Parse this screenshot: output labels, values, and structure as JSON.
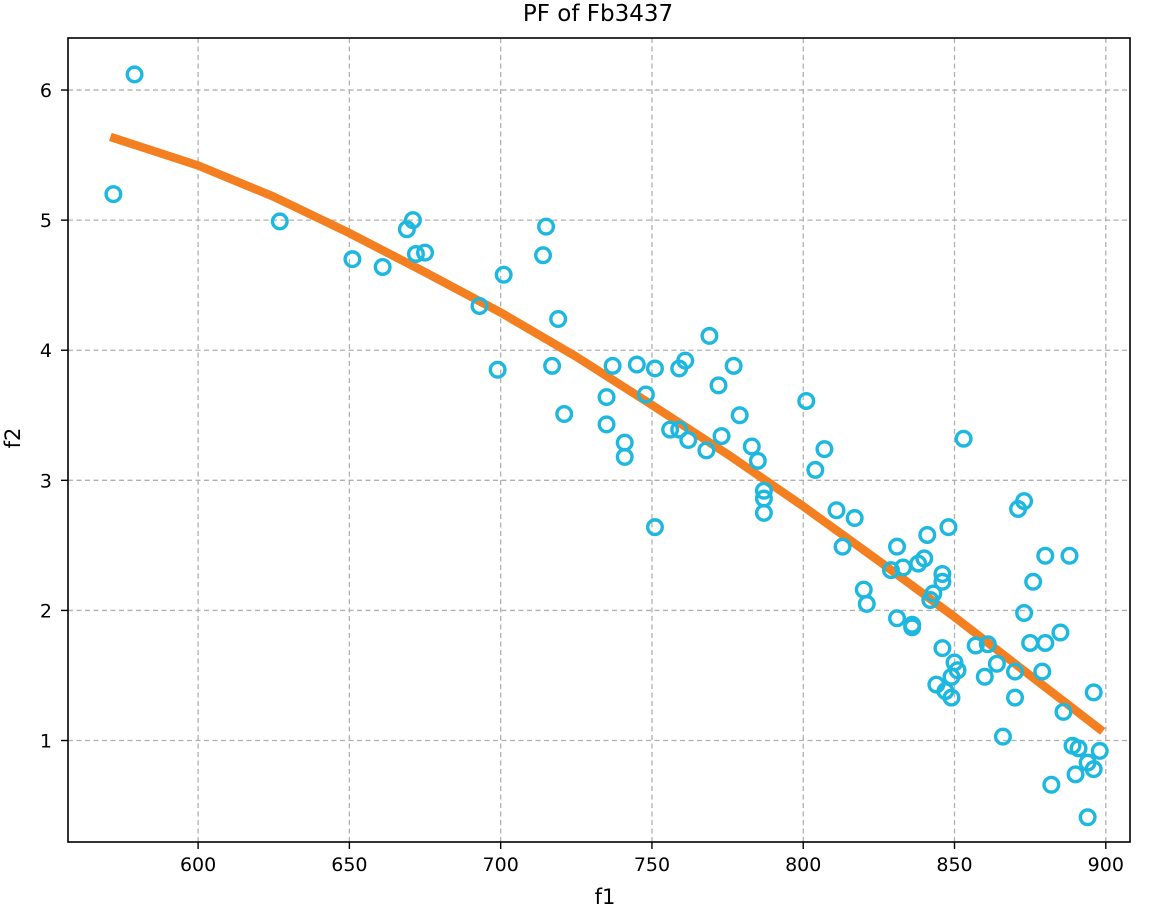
{
  "chart_data": {
    "type": "scatter",
    "title": "PF of Fb3437",
    "xlabel": "f1",
    "ylabel": "f2",
    "xlim": [
      557,
      908
    ],
    "ylim": [
      0.22,
      6.4
    ],
    "xticks": [
      600,
      650,
      700,
      750,
      800,
      850,
      900
    ],
    "yticks": [
      1,
      2,
      3,
      4,
      5,
      6
    ],
    "grid": true,
    "colors": {
      "scatter": "#1db8e0",
      "fit": "#f47f20"
    },
    "series": [
      {
        "type": "scatter",
        "points": [
          [
            579,
            6.12
          ],
          [
            572,
            5.2
          ],
          [
            627,
            4.99
          ],
          [
            651,
            4.7
          ],
          [
            661,
            4.64
          ],
          [
            669,
            4.93
          ],
          [
            671,
            5.0
          ],
          [
            672,
            4.74
          ],
          [
            675,
            4.75
          ],
          [
            693,
            4.34
          ],
          [
            699,
            3.85
          ],
          [
            701,
            4.58
          ],
          [
            714,
            4.73
          ],
          [
            715,
            4.95
          ],
          [
            717,
            3.88
          ],
          [
            719,
            4.24
          ],
          [
            721,
            3.51
          ],
          [
            735,
            3.43
          ],
          [
            735,
            3.64
          ],
          [
            737,
            3.88
          ],
          [
            741,
            3.18
          ],
          [
            741,
            3.29
          ],
          [
            745,
            3.89
          ],
          [
            748,
            3.66
          ],
          [
            751,
            2.64
          ],
          [
            751,
            3.86
          ],
          [
            756,
            3.39
          ],
          [
            759,
            3.39
          ],
          [
            759,
            3.86
          ],
          [
            761,
            3.92
          ],
          [
            762,
            3.31
          ],
          [
            768,
            3.23
          ],
          [
            769,
            4.11
          ],
          [
            772,
            3.73
          ],
          [
            773,
            3.34
          ],
          [
            777,
            3.88
          ],
          [
            779,
            3.5
          ],
          [
            783,
            3.26
          ],
          [
            785,
            3.15
          ],
          [
            787,
            2.92
          ],
          [
            787,
            2.86
          ],
          [
            787,
            2.75
          ],
          [
            801,
            3.61
          ],
          [
            804,
            3.08
          ],
          [
            807,
            3.24
          ],
          [
            811,
            2.77
          ],
          [
            813,
            2.49
          ],
          [
            817,
            2.71
          ],
          [
            820,
            2.16
          ],
          [
            821,
            2.05
          ],
          [
            829,
            2.31
          ],
          [
            831,
            2.49
          ],
          [
            831,
            1.94
          ],
          [
            833,
            2.33
          ],
          [
            836,
            1.87
          ],
          [
            836,
            1.89
          ],
          [
            838,
            2.36
          ],
          [
            840,
            2.4
          ],
          [
            841,
            2.58
          ],
          [
            842,
            2.08
          ],
          [
            843,
            2.13
          ],
          [
            844,
            1.43
          ],
          [
            846,
            1.71
          ],
          [
            846,
            2.22
          ],
          [
            846,
            2.28
          ],
          [
            847,
            1.38
          ],
          [
            848,
            2.64
          ],
          [
            849,
            1.49
          ],
          [
            849,
            1.33
          ],
          [
            850,
            1.6
          ],
          [
            851,
            1.54
          ],
          [
            853,
            3.32
          ],
          [
            857,
            1.73
          ],
          [
            860,
            1.49
          ],
          [
            861,
            1.74
          ],
          [
            864,
            1.59
          ],
          [
            866,
            1.03
          ],
          [
            870,
            1.53
          ],
          [
            870,
            1.33
          ],
          [
            871,
            2.78
          ],
          [
            873,
            2.84
          ],
          [
            873,
            1.98
          ],
          [
            875,
            1.75
          ],
          [
            876,
            2.22
          ],
          [
            879,
            1.53
          ],
          [
            880,
            1.75
          ],
          [
            880,
            2.42
          ],
          [
            882,
            0.66
          ],
          [
            885,
            1.83
          ],
          [
            886,
            1.22
          ],
          [
            888,
            2.42
          ],
          [
            889,
            0.96
          ],
          [
            890,
            0.74
          ],
          [
            891,
            0.94
          ],
          [
            894,
            0.41
          ],
          [
            894,
            0.83
          ],
          [
            896,
            0.78
          ],
          [
            896,
            1.37
          ],
          [
            898,
            0.92
          ]
        ]
      },
      {
        "type": "line",
        "points": [
          [
            571,
            5.64
          ],
          [
            600,
            5.42
          ],
          [
            625,
            5.18
          ],
          [
            650,
            4.9
          ],
          [
            675,
            4.6
          ],
          [
            700,
            4.29
          ],
          [
            725,
            3.95
          ],
          [
            750,
            3.58
          ],
          [
            775,
            3.2
          ],
          [
            800,
            2.8
          ],
          [
            825,
            2.38
          ],
          [
            850,
            1.95
          ],
          [
            875,
            1.5
          ],
          [
            899,
            1.07
          ]
        ]
      }
    ]
  }
}
